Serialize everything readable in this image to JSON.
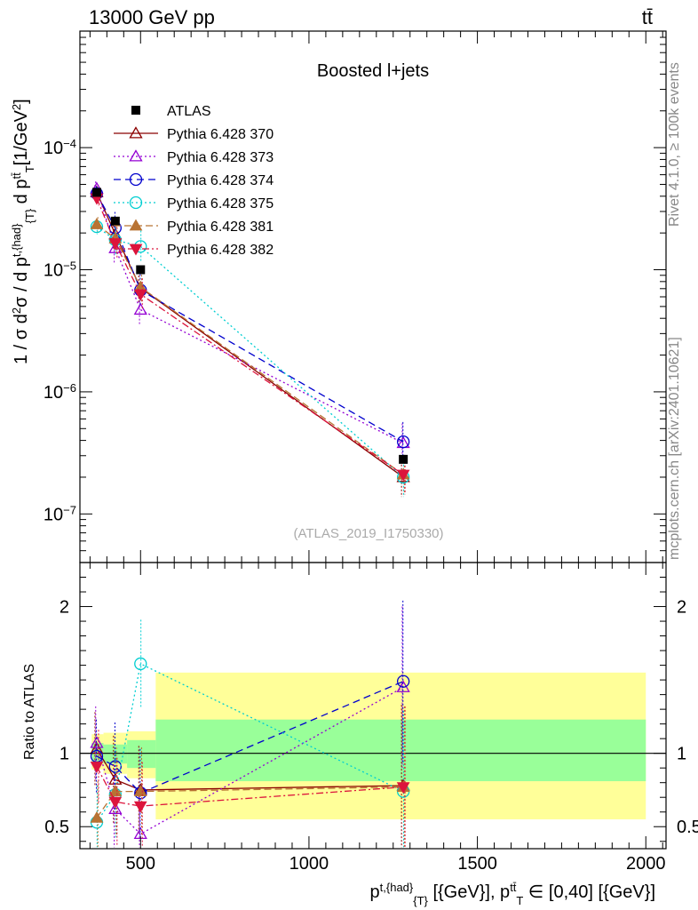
{
  "header": {
    "left": "13000 GeV pp",
    "right": "tt̄"
  },
  "side_labels": {
    "rivet": "Rivet 4.1.0, ≥ 100k events",
    "mcplots": "mcplots.cern.ch [arXiv:2401.10621]"
  },
  "main_axis": {
    "ylabel": "1 / σ d²σ / d p^{t,{had}}_{T} d p^{tt̄}_{T} [1/GeV²]",
    "ylim": [
      4e-08,
      0.0009
    ],
    "yscale": "log",
    "y_tick_labels": [
      "10^-7",
      "10^-6",
      "10^-5",
      "10^-4"
    ]
  },
  "ratio_axis": {
    "ylabel": "Ratio to ATLAS",
    "ylim": [
      0.35,
      2.3
    ],
    "y_tick_labels": [
      "0.5",
      "1",
      "2"
    ]
  },
  "x_axis": {
    "xlabel": "p^{t,{had}}_{T} [{GeV}], p^{tt̄}_{T} ∈ [0,40] [{GeV}]",
    "xlim": [
      320,
      2060
    ],
    "x_tick_labels": [
      "500",
      "1000",
      "1500",
      "2000"
    ]
  },
  "chart_data": {
    "type": "scatter",
    "title": "Boosted l+jets",
    "analysis_tag": "(ATLAS_2019_I1750330)",
    "x": [
      370,
      425,
      500,
      1280
    ],
    "bin_edges": [
      355,
      390,
      460,
      545,
      2000
    ],
    "reference": {
      "name": "ATLAS",
      "values": [
        4.3e-05,
        2.5e-05,
        1e-05,
        2.8e-07
      ],
      "band_inner": [
        [
          0.94,
          1.07
        ],
        [
          0.93,
          1.06
        ],
        [
          0.9,
          1.09
        ],
        [
          0.81,
          1.23
        ]
      ],
      "band_outer": [
        [
          0.89,
          1.13
        ],
        [
          0.86,
          1.14
        ],
        [
          0.83,
          1.15
        ],
        [
          0.55,
          1.55
        ]
      ]
    },
    "series": [
      {
        "name": "Pythia 6.428 370",
        "color": "#8b0000",
        "dash": "",
        "marker": "triangle-up-open",
        "values": [
          4.3e-05,
          1.95e-05,
          7.1e-06,
          2e-07
        ],
        "ratio": [
          1.03,
          0.82,
          0.75,
          0.78
        ]
      },
      {
        "name": "Pythia 6.428 373",
        "color": "#9400d3",
        "dash": "2,3",
        "marker": "triangle-up-open",
        "values": [
          4.6e-05,
          1.5e-05,
          4.7e-06,
          3.8e-07
        ],
        "ratio": [
          1.07,
          0.62,
          0.45,
          1.45
        ]
      },
      {
        "name": "Pythia 6.428 374",
        "color": "#0000cd",
        "dash": "8,5",
        "marker": "circle-open",
        "values": [
          4.2e-05,
          2.2e-05,
          6.8e-06,
          3.9e-07
        ],
        "ratio": [
          0.98,
          0.91,
          0.73,
          1.49
        ]
      },
      {
        "name": "Pythia 6.428 375",
        "color": "#00ced1",
        "dash": "2,3",
        "marker": "circle-open",
        "values": [
          2.25e-05,
          1.75e-05,
          1.55e-05,
          2e-07
        ],
        "ratio": [
          0.53,
          0.72,
          1.61,
          0.74
        ]
      },
      {
        "name": "Pythia 6.428 381",
        "color": "#b87333",
        "dash": "8,4",
        "marker": "triangle-up-filled",
        "values": [
          2.35e-05,
          1.8e-05,
          7.2e-06,
          2.1e-07
        ],
        "ratio": [
          0.56,
          0.74,
          0.74,
          0.77
        ]
      },
      {
        "name": "Pythia 6.428 382",
        "color": "#dc143c",
        "dash": "8,3,2,3",
        "marker": "triangle-down-filled",
        "values": [
          3.85e-05,
          1.65e-05,
          6.3e-06,
          2.1e-07
        ],
        "ratio": [
          0.91,
          0.67,
          0.64,
          0.77
        ]
      }
    ]
  }
}
